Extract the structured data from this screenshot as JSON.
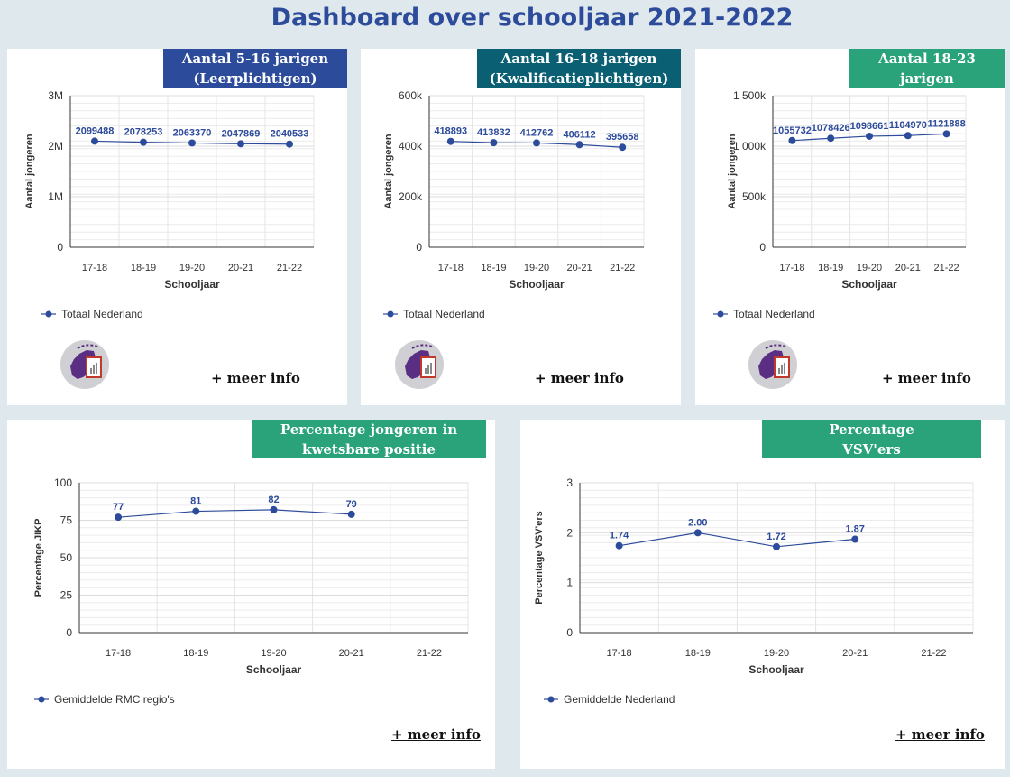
{
  "page_title": "Dashboard over schooljaar 2021-2022",
  "more_info_label": "+ meer info",
  "colors": {
    "line": "#2d4b9b",
    "badge_blue": "#2d4b9b",
    "badge_teal": "#0a5f73",
    "badge_green": "#2aa27a"
  },
  "panels": [
    {
      "badge_lines": [
        "Aantal 5-16 jarigen",
        "(Leerplichtigen)"
      ],
      "badge_color": "#2d4b9b",
      "has_logo": true,
      "chart_data": {
        "type": "line",
        "categories": [
          "17-18",
          "18-19",
          "19-20",
          "20-21",
          "21-22"
        ],
        "series": [
          {
            "name": "Totaal Nederland",
            "values": [
              2099488,
              2078253,
              2063370,
              2047869,
              2040533
            ],
            "labels": [
              "2099488",
              "2078253",
              "2063370",
              "2047869",
              "2040533"
            ]
          }
        ],
        "ylim": [
          0,
          3000000
        ],
        "yticks": [
          0,
          1000000,
          2000000,
          3000000
        ],
        "ytick_labels": [
          "0",
          "1M",
          "2M",
          "3M"
        ],
        "xlabel": "Schooljaar",
        "ylabel": "Aantal jongeren",
        "grid": true,
        "legend": "bottom-left"
      }
    },
    {
      "badge_lines": [
        "Aantal 16-18 jarigen",
        "(Kwalificatieplichtigen)"
      ],
      "badge_color": "#0a5f73",
      "has_logo": true,
      "chart_data": {
        "type": "line",
        "categories": [
          "17-18",
          "18-19",
          "19-20",
          "20-21",
          "21-22"
        ],
        "series": [
          {
            "name": "Totaal Nederland",
            "values": [
              418893,
              413832,
              412762,
              406112,
              395658
            ],
            "labels": [
              "418893",
              "413832",
              "412762",
              "406112",
              "395658"
            ]
          }
        ],
        "ylim": [
          0,
          600000
        ],
        "yticks": [
          0,
          200000,
          400000,
          600000
        ],
        "ytick_labels": [
          "0",
          "200k",
          "400k",
          "600k"
        ],
        "xlabel": "Schooljaar",
        "ylabel": "Aantal jongeren",
        "grid": true,
        "legend": "bottom-left"
      }
    },
    {
      "badge_lines": [
        "Aantal 18-23",
        "jarigen"
      ],
      "badge_color": "#2aa27a",
      "has_logo": true,
      "chart_data": {
        "type": "line",
        "categories": [
          "17-18",
          "18-19",
          "19-20",
          "20-21",
          "21-22"
        ],
        "series": [
          {
            "name": "Totaal Nederland",
            "values": [
              1055732,
              1078426,
              1098661,
              1104970,
              1121888
            ],
            "labels": [
              "1055732",
              "1078426",
              "1098661",
              "1104970",
              "1121888"
            ]
          }
        ],
        "ylim": [
          0,
          1500000
        ],
        "yticks": [
          0,
          500000,
          1000000,
          1500000
        ],
        "ytick_labels": [
          "0",
          "500k",
          "1 000k",
          "1 500k"
        ],
        "xlabel": "Schooljaar",
        "ylabel": "Aantal jongeren",
        "grid": true,
        "legend": "bottom-left"
      }
    },
    {
      "badge_lines": [
        "Percentage jongeren in",
        "kwetsbare positie"
      ],
      "badge_color": "#2aa27a",
      "has_logo": false,
      "chart_data": {
        "type": "line",
        "categories": [
          "17-18",
          "18-19",
          "19-20",
          "20-21",
          "21-22"
        ],
        "series": [
          {
            "name": "Gemiddelde RMC regio's",
            "values": [
              77,
              81,
              82,
              79,
              null
            ],
            "labels": [
              "77",
              "81",
              "82",
              "79",
              ""
            ]
          }
        ],
        "ylim": [
          0,
          100
        ],
        "yticks": [
          0,
          25,
          50,
          75,
          100
        ],
        "ytick_labels": [
          "0",
          "25",
          "50",
          "75",
          "100"
        ],
        "xlabel": "Schooljaar",
        "ylabel": "Percentage JIKP",
        "grid": true,
        "legend": "bottom-left"
      }
    },
    {
      "badge_lines": [
        "Percentage",
        "VSV'ers"
      ],
      "badge_color": "#2aa27a",
      "has_logo": false,
      "chart_data": {
        "type": "line",
        "categories": [
          "17-18",
          "18-19",
          "19-20",
          "20-21",
          "21-22"
        ],
        "series": [
          {
            "name": "Gemiddelde Nederland",
            "values": [
              1.74,
              2.0,
              1.72,
              1.87,
              null
            ],
            "labels": [
              "1.74",
              "2.00",
              "1.72",
              "1.87",
              ""
            ]
          }
        ],
        "ylim": [
          0,
          3
        ],
        "yticks": [
          0,
          1,
          2,
          3
        ],
        "ytick_labels": [
          "0",
          "1",
          "2",
          "3"
        ],
        "xlabel": "Schooljaar",
        "ylabel": "Percentage VSV'ers",
        "grid": true,
        "legend": "bottom-left"
      }
    }
  ]
}
